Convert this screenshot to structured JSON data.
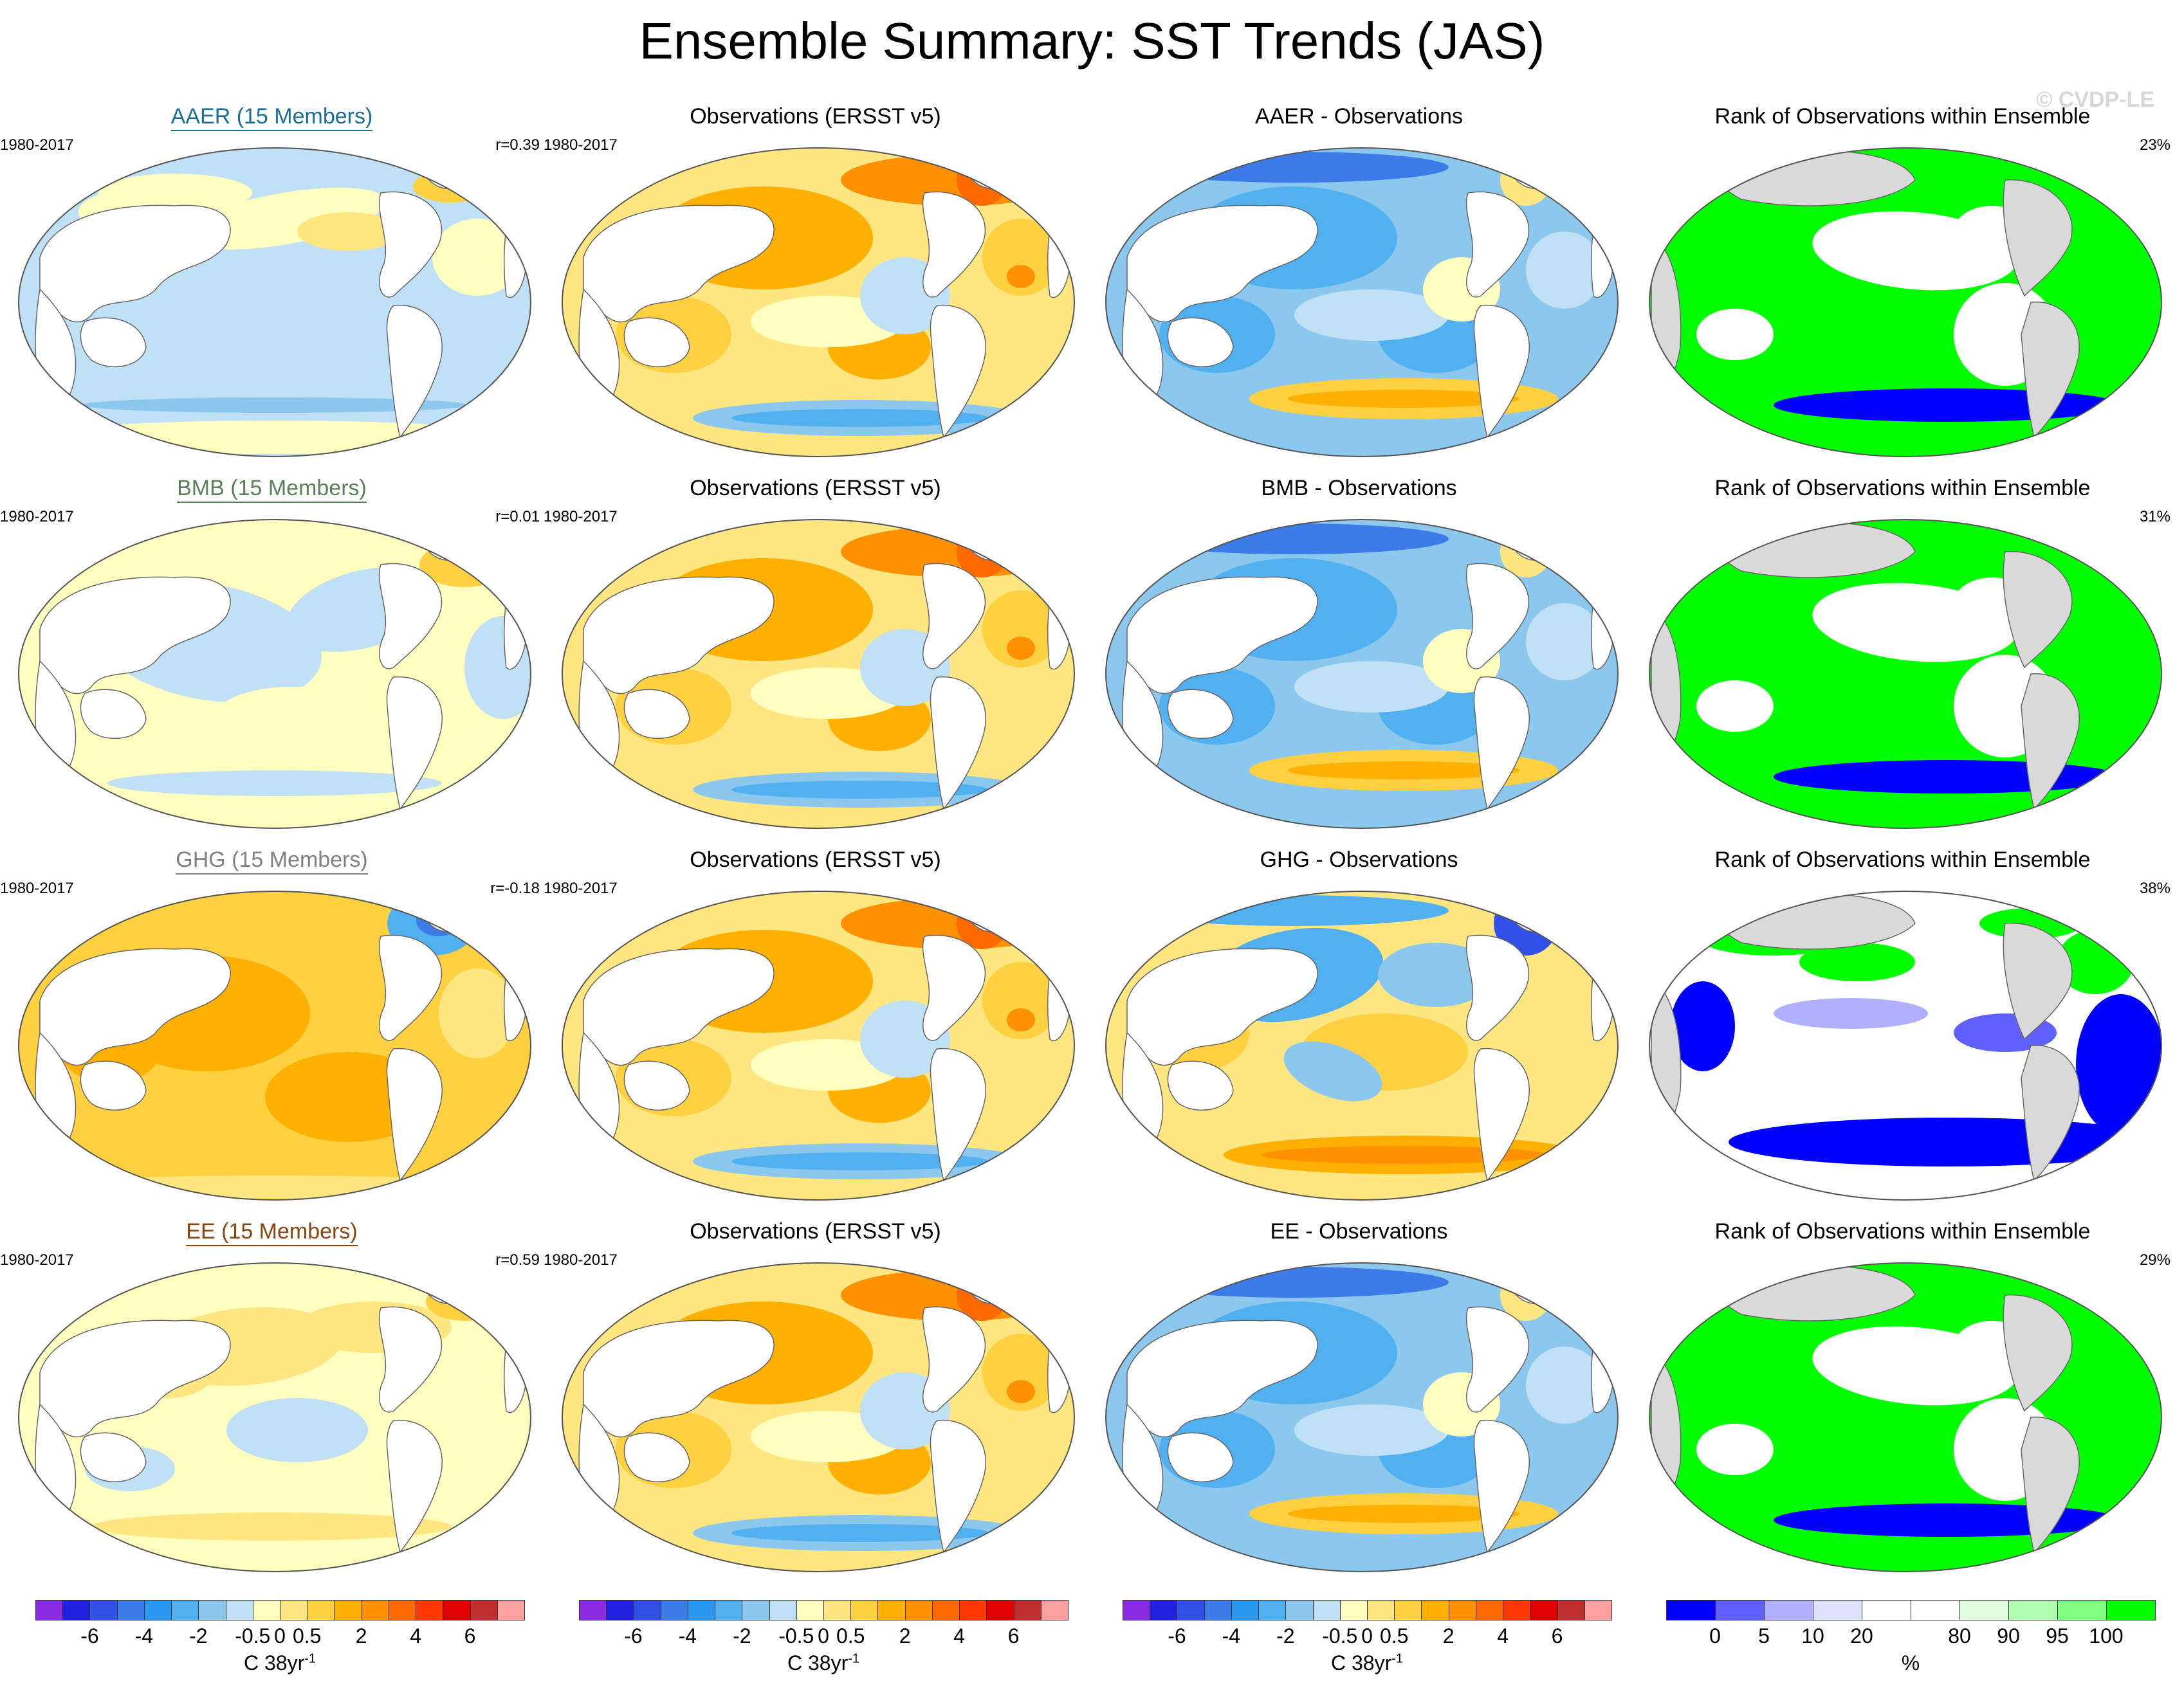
{
  "title": "Ensemble Summary: SST Trends (JAS)",
  "watermark": "© CVDP-LE",
  "rows": [
    {
      "ensemble": {
        "title": "AAER (15 Members)",
        "title_color": "#1a6f96",
        "period": "1980-2017",
        "r": "r=0.39",
        "pattern": "aaer"
      },
      "obs": {
        "title": "Observations (ERSST v5)",
        "period": "1980-2017",
        "pattern": "obs"
      },
      "diff": {
        "title": "AAER - Observations",
        "pattern": "diff_cool"
      },
      "rank": {
        "title": "Rank of Observations within Ensemble",
        "pct": "23%",
        "pattern": "rank_green"
      }
    },
    {
      "ensemble": {
        "title": "BMB (15 Members)",
        "title_color": "#5a7f5a",
        "period": "1980-2017",
        "r": "r=0.01",
        "pattern": "bmb"
      },
      "obs": {
        "title": "Observations (ERSST v5)",
        "period": "1980-2017",
        "pattern": "obs"
      },
      "diff": {
        "title": "BMB - Observations",
        "pattern": "diff_cool"
      },
      "rank": {
        "title": "Rank of Observations within Ensemble",
        "pct": "31%",
        "pattern": "rank_green"
      }
    },
    {
      "ensemble": {
        "title": "GHG (15 Members)",
        "title_color": "#808080",
        "period": "1980-2017",
        "r": "r=-0.18",
        "pattern": "ghg"
      },
      "obs": {
        "title": "Observations (ERSST v5)",
        "period": "1980-2017",
        "pattern": "obs"
      },
      "diff": {
        "title": "GHG - Observations",
        "pattern": "diff_warm"
      },
      "rank": {
        "title": "Rank of Observations within Ensemble",
        "pct": "38%",
        "pattern": "rank_blue"
      }
    },
    {
      "ensemble": {
        "title": "EE (15 Members)",
        "title_color": "#8b4513",
        "period": "1980-2017",
        "r": "r=0.59",
        "pattern": "ee"
      },
      "obs": {
        "title": "Observations (ERSST v5)",
        "period": "1980-2017",
        "pattern": "obs"
      },
      "diff": {
        "title": "EE - Observations",
        "pattern": "diff_cool"
      },
      "rank": {
        "title": "Rank of Observations within Ensemble",
        "pct": "29%",
        "pattern": "rank_green"
      }
    }
  ],
  "colorbars": {
    "sst": {
      "colors": [
        "#8a2be2",
        "#2020e0",
        "#3050e8",
        "#3c7ce8",
        "#2898f0",
        "#50b0f0",
        "#8cc8ee",
        "#bfe0f5",
        "#ffffc0",
        "#ffe680",
        "#ffd040",
        "#ffb000",
        "#ff9000",
        "#ff6a00",
        "#ff3800",
        "#e00000",
        "#c03030",
        "#ffa0a0"
      ],
      "ticks": [
        "-6",
        "-4",
        "-2",
        "-0.5",
        "0",
        "0.5",
        "2",
        "4",
        "6"
      ],
      "units": "C 38yr",
      "units_sup": "-1"
    },
    "rank": {
      "colors": [
        "#0000ff",
        "#6060ff",
        "#b0b0ff",
        "#e0e0ff",
        "#ffffff",
        "#ffffff",
        "#e0ffe0",
        "#b0ffb0",
        "#80ff80",
        "#00ff00"
      ],
      "ticks": [
        "0",
        "5",
        "10",
        "20",
        "80",
        "90",
        "95",
        "100"
      ],
      "units": "%"
    }
  },
  "chart_data": {
    "type": "heatmap",
    "title": "Ensemble Summary: SST Trends (JAS)",
    "period": "1980-2017",
    "panels": [
      {
        "row": 1,
        "ensemble": "AAER (15 Members)",
        "pattern_correlation": 0.39,
        "rank_pct_area": 23
      },
      {
        "row": 2,
        "ensemble": "BMB (15 Members)",
        "pattern_correlation": 0.01,
        "rank_pct_area": 31
      },
      {
        "row": 3,
        "ensemble": "GHG (15 Members)",
        "pattern_correlation": -0.18,
        "rank_pct_area": 38
      },
      {
        "row": 4,
        "ensemble": "EE (15 Members)",
        "pattern_correlation": 0.59,
        "rank_pct_area": 29
      }
    ],
    "sst_colorbar_levels": [
      -6,
      -4,
      -2,
      -0.5,
      0,
      0.5,
      2,
      4,
      6
    ],
    "sst_units": "C 38yr-1",
    "rank_colorbar_levels": [
      0,
      5,
      10,
      20,
      80,
      90,
      95,
      100
    ],
    "rank_units": "%"
  }
}
